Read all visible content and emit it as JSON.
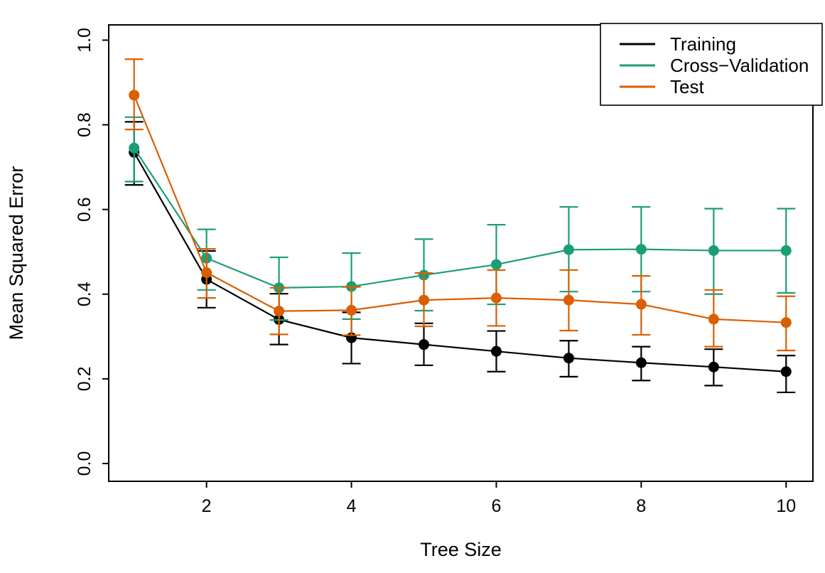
{
  "chart_data": {
    "type": "line",
    "title": "",
    "xlabel": "Tree Size",
    "ylabel": "Mean Squared Error",
    "x": [
      1,
      2,
      3,
      4,
      5,
      6,
      7,
      8,
      9,
      10
    ],
    "xticks": [
      2,
      4,
      6,
      8,
      10
    ],
    "xtick_labels": [
      "2",
      "4",
      "6",
      "8",
      "10"
    ],
    "yticks": [
      0.0,
      0.2,
      0.4,
      0.6,
      0.8,
      1.0
    ],
    "ytick_labels": [
      "0.0",
      "0.2",
      "0.4",
      "0.6",
      "0.8",
      "1.0"
    ],
    "xlim": [
      0.65,
      10.37
    ],
    "ylim": [
      -0.042,
      1.036
    ],
    "grid": false,
    "error_bars": true,
    "point_style": "filled-circle",
    "legend_position": "top-right",
    "series": [
      {
        "name": "Training",
        "color": "#000000",
        "values": [
          0.735,
          0.435,
          0.34,
          0.297,
          0.281,
          0.265,
          0.249,
          0.238,
          0.228,
          0.217
        ],
        "upper": [
          0.807,
          0.502,
          0.401,
          0.357,
          0.331,
          0.313,
          0.29,
          0.276,
          0.27,
          0.255
        ],
        "lower": [
          0.658,
          0.368,
          0.281,
          0.236,
          0.232,
          0.217,
          0.205,
          0.196,
          0.184,
          0.168
        ]
      },
      {
        "name": "Cross−Validation",
        "color": "#1b9e77",
        "values": [
          0.745,
          0.485,
          0.415,
          0.418,
          0.445,
          0.47,
          0.505,
          0.506,
          0.503,
          0.503
        ],
        "upper": [
          0.818,
          0.553,
          0.487,
          0.497,
          0.53,
          0.564,
          0.606,
          0.606,
          0.602,
          0.602
        ],
        "lower": [
          0.666,
          0.41,
          0.339,
          0.341,
          0.361,
          0.376,
          0.406,
          0.406,
          0.4,
          0.403
        ]
      },
      {
        "name": "Test",
        "color": "#d95f02",
        "values": [
          0.87,
          0.451,
          0.36,
          0.362,
          0.386,
          0.391,
          0.386,
          0.376,
          0.341,
          0.333
        ],
        "upper": [
          0.955,
          0.507,
          0.415,
          0.417,
          0.45,
          0.457,
          0.457,
          0.443,
          0.41,
          0.395
        ],
        "lower": [
          0.789,
          0.391,
          0.305,
          0.303,
          0.324,
          0.325,
          0.314,
          0.304,
          0.276,
          0.267
        ]
      }
    ]
  },
  "colors": {
    "background": "#ffffff",
    "axis": "#000000",
    "training": "#000000",
    "cross_validation": "#1b9e77",
    "test": "#d95f02"
  }
}
